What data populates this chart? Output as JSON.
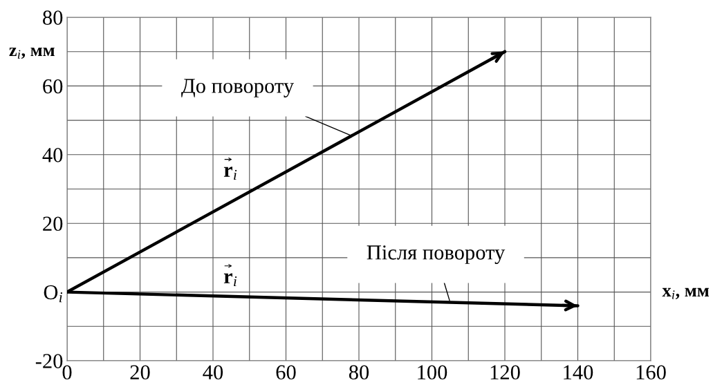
{
  "chart_data": {
    "type": "line",
    "xlabel": "x$_{i}$, мм",
    "ylabel": "z$_{i}$, мм",
    "series": [
      {
        "color": "#000000",
        "x": [
          0,
          120
        ],
        "values": [
          0,
          70
        ]
      },
      {
        "color": "#000000",
        "x": [
          0,
          140
        ],
        "values": [
          0,
          -4
        ]
      }
    ],
    "xlim": [
      0,
      160
    ],
    "ylim": [
      -20,
      80
    ],
    "xticks": [
      0,
      {
        "value": 10,
        "label": null
      },
      20,
      {
        "value": 30,
        "label": null
      },
      40,
      {
        "value": 50,
        "label": null
      },
      60,
      {
        "value": 70,
        "label": null
      },
      80,
      {
        "value": 90,
        "label": null
      },
      100,
      {
        "value": 110,
        "label": null
      },
      120,
      {
        "value": 130,
        "label": null
      },
      140,
      {
        "value": 150,
        "label": null
      },
      160
    ],
    "yticks": [
      -20,
      {
        "value": -10,
        "label": null
      },
      {
        "value": 0,
        "label": "O$_{i}$"
      },
      {
        "value": 10,
        "label": null
      },
      20,
      {
        "value": 30,
        "label": null
      },
      40,
      {
        "value": 50,
        "label": null
      },
      60,
      {
        "value": 70,
        "label": null
      },
      80
    ],
    "grid": true,
    "marker": "none",
    "line_style": "solid",
    "annotations": [
      {
        "text": "До повороту",
        "x": 78,
        "y": 45.5
      },
      "r$_{i}$",
      {
        "text": "Після повороту",
        "x": 105,
        "y": -3
      },
      "r$_{i}$"
    ]
  }
}
